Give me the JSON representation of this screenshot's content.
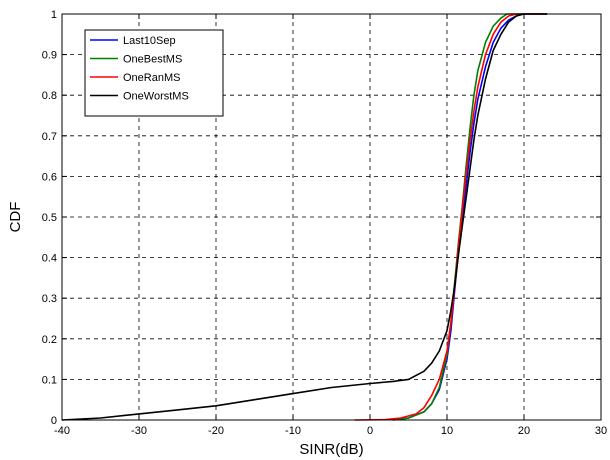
{
  "chart_data": {
    "type": "line",
    "title": "",
    "xlabel": "SINR(dB)",
    "ylabel": "CDF",
    "xlim": [
      -40,
      30
    ],
    "ylim": [
      0,
      1
    ],
    "xticks": [
      -40,
      -30,
      -20,
      -10,
      0,
      10,
      20,
      30
    ],
    "yticks": [
      0,
      0.1,
      0.2,
      0.3,
      0.4,
      0.5,
      0.6,
      0.7,
      0.8,
      0.9,
      1
    ],
    "x_tick_labels": [
      "-40",
      "-30",
      "-20",
      "-10",
      "0",
      "10",
      "20",
      "30"
    ],
    "y_tick_labels": [
      "0",
      "0.1",
      "0.2",
      "0.3",
      "0.4",
      "0.5",
      "0.6",
      "0.7",
      "0.8",
      "0.9",
      "1"
    ],
    "grid": true,
    "grid_style": "dashed",
    "legend_position": "top-left",
    "series": [
      {
        "name": "Last10Sep",
        "color": "#0000ff",
        "points": [
          [
            3,
            0
          ],
          [
            5,
            0.005
          ],
          [
            7,
            0.02
          ],
          [
            8,
            0.04
          ],
          [
            9,
            0.075
          ],
          [
            10,
            0.15
          ],
          [
            10.5,
            0.22
          ],
          [
            11,
            0.32
          ],
          [
            11.5,
            0.42
          ],
          [
            12,
            0.5
          ],
          [
            12.5,
            0.58
          ],
          [
            13,
            0.66
          ],
          [
            13.5,
            0.73
          ],
          [
            14,
            0.79
          ],
          [
            15,
            0.87
          ],
          [
            16,
            0.93
          ],
          [
            17,
            0.965
          ],
          [
            18,
            0.985
          ],
          [
            19,
            0.995
          ],
          [
            19.5,
            1
          ],
          [
            23,
            1
          ]
        ]
      },
      {
        "name": "OneBestMS",
        "color": "#008000",
        "points": [
          [
            3,
            0
          ],
          [
            5,
            0.005
          ],
          [
            7,
            0.02
          ],
          [
            8,
            0.04
          ],
          [
            9,
            0.08
          ],
          [
            10,
            0.16
          ],
          [
            10.5,
            0.24
          ],
          [
            11,
            0.34
          ],
          [
            11.5,
            0.44
          ],
          [
            12,
            0.53
          ],
          [
            12.5,
            0.63
          ],
          [
            13,
            0.72
          ],
          [
            13.5,
            0.8
          ],
          [
            14,
            0.86
          ],
          [
            15,
            0.93
          ],
          [
            16,
            0.97
          ],
          [
            17,
            0.99
          ],
          [
            17.8,
            1
          ],
          [
            23,
            1
          ]
        ]
      },
      {
        "name": "OneRanMS",
        "color": "#ff0000",
        "points": [
          [
            -2,
            0
          ],
          [
            2,
            0.001
          ],
          [
            4,
            0.005
          ],
          [
            6,
            0.015
          ],
          [
            7,
            0.03
          ],
          [
            8,
            0.06
          ],
          [
            9,
            0.1
          ],
          [
            10,
            0.17
          ],
          [
            10.5,
            0.24
          ],
          [
            11,
            0.33
          ],
          [
            11.5,
            0.43
          ],
          [
            12,
            0.52
          ],
          [
            12.5,
            0.61
          ],
          [
            13,
            0.69
          ],
          [
            13.5,
            0.76
          ],
          [
            14,
            0.82
          ],
          [
            15,
            0.9
          ],
          [
            16,
            0.95
          ],
          [
            17,
            0.98
          ],
          [
            18,
            0.995
          ],
          [
            19,
            1
          ],
          [
            23,
            1
          ]
        ]
      },
      {
        "name": "OneWorstMS",
        "color": "#000000",
        "points": [
          [
            -40,
            0
          ],
          [
            -35,
            0.005
          ],
          [
            -30,
            0.015
          ],
          [
            -25,
            0.025
          ],
          [
            -20,
            0.035
          ],
          [
            -15,
            0.05
          ],
          [
            -10,
            0.065
          ],
          [
            -5,
            0.08
          ],
          [
            0,
            0.09
          ],
          [
            3,
            0.095
          ],
          [
            5,
            0.1
          ],
          [
            7,
            0.12
          ],
          [
            8,
            0.14
          ],
          [
            9,
            0.17
          ],
          [
            10,
            0.22
          ],
          [
            10.5,
            0.27
          ],
          [
            11,
            0.33
          ],
          [
            11.5,
            0.41
          ],
          [
            12,
            0.48
          ],
          [
            12.5,
            0.55
          ],
          [
            13,
            0.62
          ],
          [
            13.5,
            0.69
          ],
          [
            14,
            0.75
          ],
          [
            15,
            0.84
          ],
          [
            16,
            0.91
          ],
          [
            17,
            0.95
          ],
          [
            18,
            0.98
          ],
          [
            19,
            0.995
          ],
          [
            20,
            1
          ],
          [
            23,
            1
          ]
        ]
      }
    ]
  }
}
